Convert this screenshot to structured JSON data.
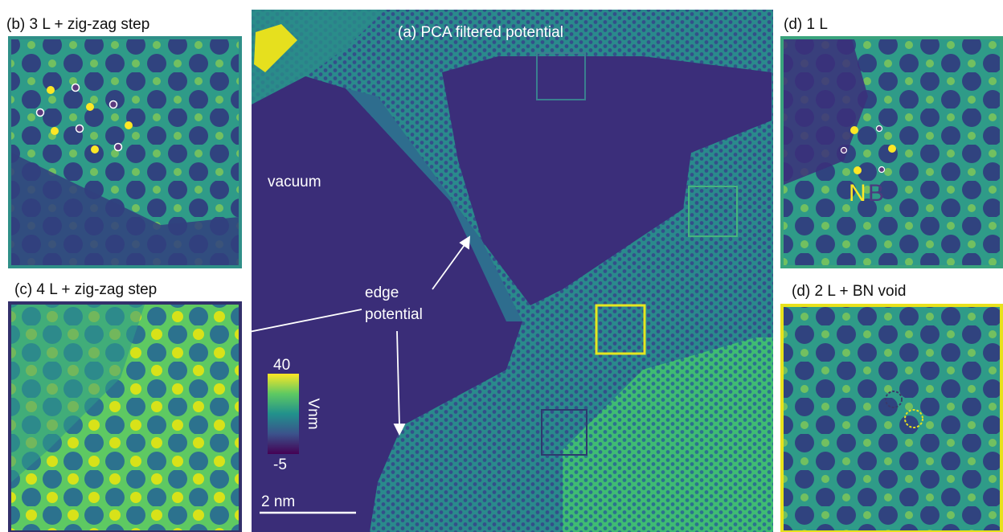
{
  "panels": {
    "a": {
      "title": "(a) PCA filtered potential",
      "region_label": "vacuum",
      "annotation": [
        "edge",
        "potential"
      ],
      "colorbar": {
        "max": 40,
        "min": -5,
        "unit": "Vnm"
      },
      "scale_bar": "2 nm"
    },
    "b": {
      "title": "(b) 3 L + zig-zag step"
    },
    "c": {
      "title": "(c) 4 L + zig-zag step"
    },
    "d1": {
      "title": "(d) 1 L",
      "atom_labels": [
        "N",
        "B"
      ]
    },
    "d2": {
      "title": "(d) 2 L + BN void"
    }
  }
}
